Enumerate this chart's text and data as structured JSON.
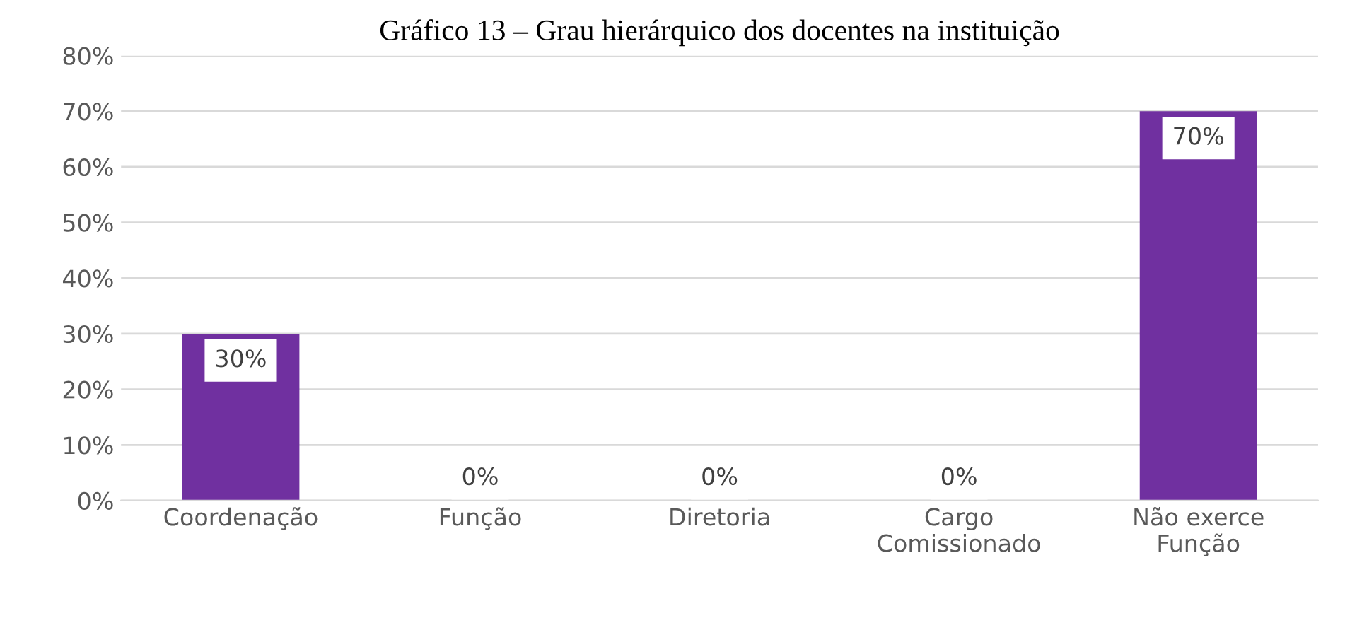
{
  "chart_data": {
    "type": "bar",
    "title": "Gráfico 13 – Grau hierárquico dos docentes na instituição",
    "categories": [
      "Coordenação",
      "Função",
      "Diretoria",
      "Cargo\nComissionado",
      "Não exerce\nFunção"
    ],
    "values": [
      30,
      0,
      0,
      0,
      70
    ],
    "value_labels": [
      "30%",
      "0%",
      "0%",
      "0%",
      "70%"
    ],
    "color": "#7030a0",
    "ylim": [
      0,
      80
    ],
    "yticks": [
      {
        "value": 0,
        "label": "0%"
      },
      {
        "value": 10,
        "label": "10%"
      },
      {
        "value": 20,
        "label": "20%"
      },
      {
        "value": 30,
        "label": "30%"
      },
      {
        "value": 40,
        "label": "40%"
      },
      {
        "value": 50,
        "label": "50%"
      },
      {
        "value": 60,
        "label": "60%"
      },
      {
        "value": 70,
        "label": "70%"
      },
      {
        "value": 80,
        "label": "80%"
      }
    ],
    "grid": "y",
    "legend": false
  }
}
